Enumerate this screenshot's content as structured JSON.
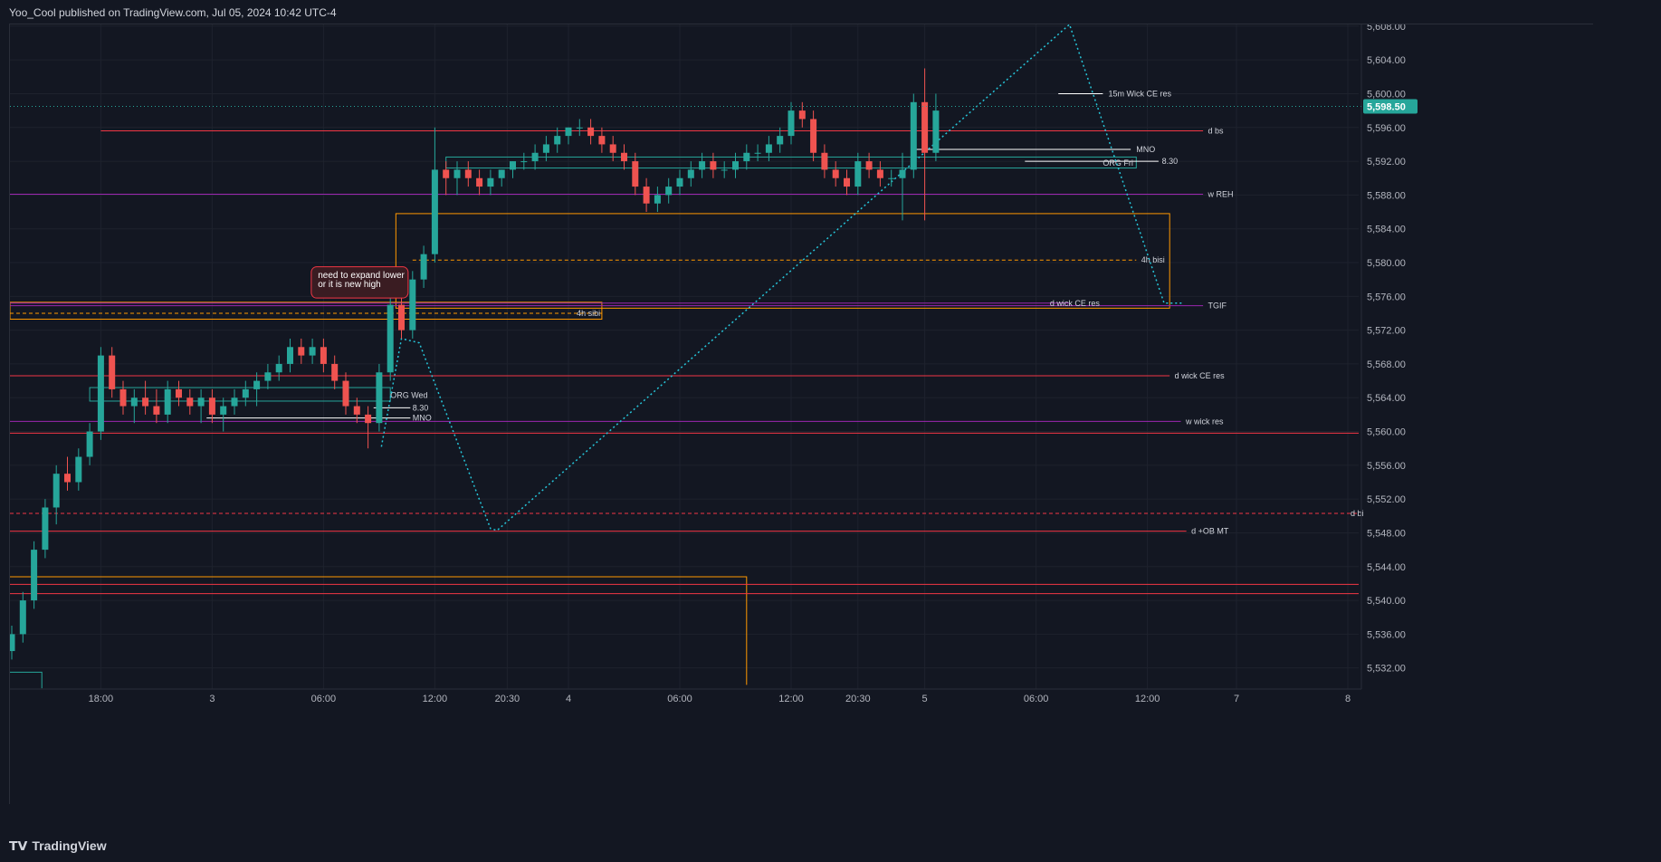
{
  "header": {
    "publisher_line": "Yoo_Cool published on TradingView.com, Jul 05, 2024 10:42 UTC-4"
  },
  "footer": {
    "brand": "TradingView",
    "logo_icon": "tradingview-logo-icon"
  },
  "colors": {
    "background": "#131722",
    "grid": "#1e222d",
    "up": "#26a69a",
    "down": "#ef5350",
    "red_line": "#f23645",
    "purple_line": "#9c27b0",
    "orange": "#ff9800",
    "white_line": "#ffffff",
    "cyan_dotted": "#26c6da",
    "price_badge": "#26a69a"
  },
  "chart_data": {
    "type": "candlestick",
    "symbol_timeframe": "15m",
    "y_axis": {
      "ticks": [
        5532,
        5536,
        5540,
        5544,
        5548,
        5552,
        5556,
        5560,
        5564,
        5568,
        5572,
        5576,
        5580,
        5584,
        5588,
        5592,
        5596,
        5600,
        5604,
        5608
      ],
      "tick_labels": [
        "5,532.00",
        "5,536.00",
        "5,540.00",
        "5,544.00",
        "5,548.00",
        "5,552.00",
        "5,556.00",
        "5,560.00",
        "5,564.00",
        "5,568.00",
        "5,572.00",
        "5,576.00",
        "5,580.00",
        "5,584.00",
        "5,588.00",
        "5,592.00",
        "5,596.00",
        "5,600.00",
        "5,604.00",
        "5,608.00"
      ],
      "range": [
        5529.5,
        5608.2
      ]
    },
    "x_axis": {
      "labels": [
        "18:00",
        "3",
        "06:00",
        "12:00",
        "20:30",
        "4",
        "06:00",
        "12:00",
        "20:30",
        "5",
        "06:00",
        "12:00",
        "7",
        "8"
      ],
      "label_index": [
        8,
        18,
        28,
        38,
        44.5,
        50,
        60,
        70,
        76,
        82,
        92,
        102,
        110,
        120
      ]
    },
    "current_price": {
      "value": 5598.5,
      "label": "5,598.50"
    },
    "candles": [
      [
        5534,
        5537,
        5533,
        5536
      ],
      [
        5536,
        5541,
        5535,
        5540
      ],
      [
        5540,
        5547,
        5539,
        5546
      ],
      [
        5546,
        5552,
        5545,
        5551
      ],
      [
        5551,
        5556,
        5549,
        5555
      ],
      [
        5555,
        5557,
        5553,
        5554
      ],
      [
        5554,
        5558,
        5553,
        5557
      ],
      [
        5557,
        5561,
        5556,
        5560
      ],
      [
        5560,
        5570,
        5559,
        5569
      ],
      [
        5569,
        5570,
        5564,
        5565
      ],
      [
        5565,
        5566,
        5562,
        5563
      ],
      [
        5563,
        5565,
        5561,
        5564
      ],
      [
        5564,
        5566,
        5562,
        5563
      ],
      [
        5563,
        5565,
        5561,
        5562
      ],
      [
        5562,
        5566,
        5561,
        5565
      ],
      [
        5565,
        5566,
        5563,
        5564
      ],
      [
        5564,
        5565,
        5562,
        5563
      ],
      [
        5563,
        5565,
        5561,
        5564
      ],
      [
        5564,
        5565,
        5561,
        5562
      ],
      [
        5562,
        5564,
        5560,
        5563
      ],
      [
        5563,
        5565,
        5562,
        5564
      ],
      [
        5564,
        5566,
        5563,
        5565
      ],
      [
        5565,
        5567,
        5563,
        5566
      ],
      [
        5566,
        5568,
        5565,
        5567
      ],
      [
        5567,
        5569,
        5566,
        5568
      ],
      [
        5568,
        5571,
        5567,
        5570
      ],
      [
        5570,
        5571,
        5568,
        5569
      ],
      [
        5569,
        5571,
        5568,
        5570
      ],
      [
        5570,
        5571,
        5567,
        5568
      ],
      [
        5568,
        5569,
        5565,
        5566
      ],
      [
        5566,
        5567,
        5562,
        5563
      ],
      [
        5563,
        5564,
        5561,
        5562
      ],
      [
        5562,
        5563,
        5558,
        5561
      ],
      [
        5561,
        5568,
        5560,
        5567
      ],
      [
        5567,
        5576,
        5566,
        5575
      ],
      [
        5575,
        5576,
        5571,
        5572
      ],
      [
        5572,
        5579,
        5571,
        5578
      ],
      [
        5578,
        5582,
        5577,
        5581
      ],
      [
        5581,
        5596,
        5580,
        5591
      ],
      [
        5591,
        5592,
        5588,
        5590
      ],
      [
        5590,
        5592,
        5588,
        5591
      ],
      [
        5591,
        5592,
        5589,
        5590
      ],
      [
        5590,
        5591,
        5588,
        5589
      ],
      [
        5589,
        5591,
        5588,
        5590
      ],
      [
        5590,
        5591,
        5589,
        5591
      ],
      [
        5591,
        5592,
        5590,
        5592
      ],
      [
        5592,
        5593,
        5591,
        5592
      ],
      [
        5592,
        5594,
        5591,
        5593
      ],
      [
        5593,
        5595,
        5592,
        5594
      ],
      [
        5594,
        5596,
        5593,
        5595
      ],
      [
        5595,
        5596,
        5594,
        5596
      ],
      [
        5596,
        5597,
        5595,
        5596
      ],
      [
        5596,
        5597,
        5594,
        5595
      ],
      [
        5595,
        5596,
        5593,
        5594
      ],
      [
        5594,
        5595,
        5592,
        5593
      ],
      [
        5593,
        5594,
        5591,
        5592
      ],
      [
        5592,
        5593,
        5588,
        5589
      ],
      [
        5589,
        5590,
        5586,
        5587
      ],
      [
        5587,
        5589,
        5586,
        5588
      ],
      [
        5588,
        5590,
        5587,
        5589
      ],
      [
        5589,
        5591,
        5588,
        5590
      ],
      [
        5590,
        5592,
        5589,
        5591
      ],
      [
        5591,
        5593,
        5590,
        5592
      ],
      [
        5592,
        5593,
        5590,
        5591
      ],
      [
        5591,
        5592,
        5590,
        5591
      ],
      [
        5591,
        5593,
        5590,
        5592
      ],
      [
        5592,
        5594,
        5591,
        5593
      ],
      [
        5593,
        5594,
        5592,
        5593
      ],
      [
        5593,
        5595,
        5592,
        5594
      ],
      [
        5594,
        5596,
        5593,
        5595
      ],
      [
        5595,
        5599,
        5594,
        5598
      ],
      [
        5598,
        5599,
        5596,
        5597
      ],
      [
        5597,
        5598,
        5592,
        5593
      ],
      [
        5593,
        5594,
        5590,
        5591
      ],
      [
        5591,
        5592,
        5589,
        5590
      ],
      [
        5590,
        5591,
        5588,
        5589
      ],
      [
        5589,
        5593,
        5588,
        5592
      ],
      [
        5592,
        5593,
        5590,
        5591
      ],
      [
        5591,
        5592,
        5589,
        5590
      ],
      [
        5590,
        5591,
        5589,
        5590
      ],
      [
        5590,
        5593,
        5585,
        5591
      ],
      [
        5591,
        5600,
        5590,
        5599
      ],
      [
        5599,
        5603,
        5585,
        5593
      ],
      [
        5593,
        5600,
        5592,
        5598
      ]
    ],
    "levels": [
      {
        "label": "d bs",
        "price": 5595.6,
        "color": "red"
      },
      {
        "label": "w REH",
        "price": 5588.1,
        "color": "purple"
      },
      {
        "label": "4h bisi",
        "price": 5580.3,
        "color": "orange",
        "dashed": true
      },
      {
        "label": "TGIF",
        "price": 5574.9,
        "color": "purple"
      },
      {
        "label": "d wick CE res",
        "price": 5575.2,
        "color": "purple"
      },
      {
        "label": "4h sibi",
        "price": 5574.0,
        "color": "orange",
        "dashed": true
      },
      {
        "label": "d wick CE res",
        "price": 5566.6,
        "color": "red"
      },
      {
        "label": "w wick res",
        "price": 5561.2,
        "color": "purple"
      },
      {
        "label": "d bi",
        "price": 5550.3,
        "color": "red",
        "dashed": true
      },
      {
        "label": "d +OB MT",
        "price": 5548.2,
        "color": "red"
      }
    ],
    "annotations": {
      "note": [
        "need to expand lower",
        "or it is new high"
      ],
      "org_wed": "ORG Wed",
      "org_fri": "ORG Fri",
      "t830_wed": "8.30",
      "mno_wed": "MNO",
      "t830_fri": "8.30",
      "mno_fri": "MNO",
      "wick_15m": "15m Wick CE res"
    }
  }
}
